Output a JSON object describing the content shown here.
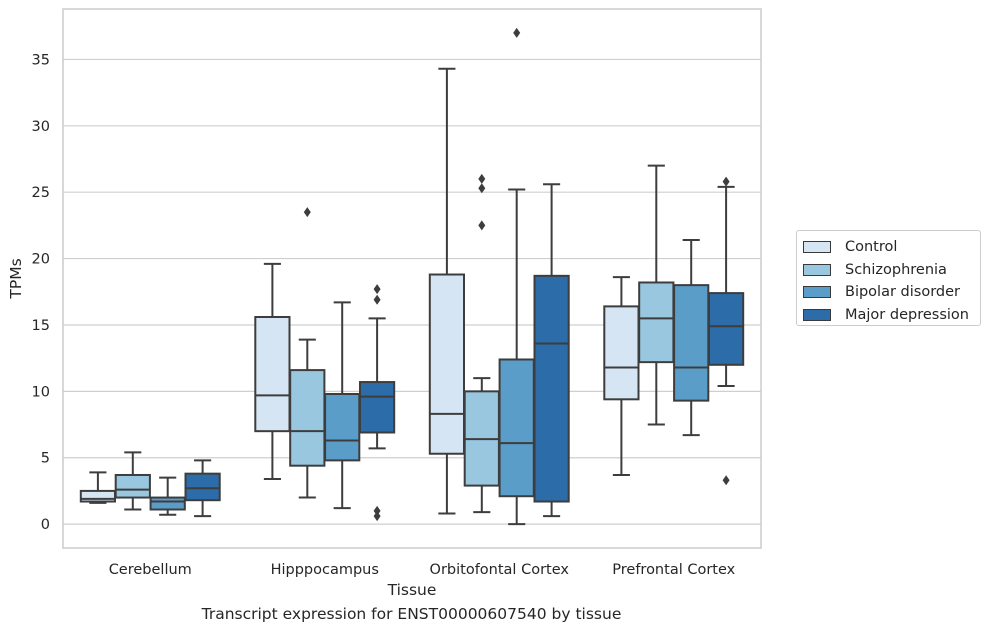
{
  "chart_data": {
    "type": "box",
    "title": "",
    "caption": "Transcript expression for ENST00000607540 by tissue",
    "xlabel": "Tissue",
    "ylabel": "TPMs",
    "ylim": [
      -1.8,
      38.8
    ],
    "yticks": [
      0,
      5,
      10,
      15,
      20,
      25,
      30,
      35
    ],
    "grid": true,
    "legend_position": "outside-right",
    "categories": [
      "Cerebellum",
      "Hipppocampus",
      "Orbitofontal Cortex",
      "Prefrontal Cortex"
    ],
    "series": [
      {
        "name": "Control",
        "color": "#d6e5f4",
        "boxes": [
          {
            "whislo": 1.6,
            "q1": 1.7,
            "med": 1.9,
            "q3": 2.5,
            "whishi": 3.9,
            "fliers": []
          },
          {
            "whislo": 3.4,
            "q1": 7.0,
            "med": 9.7,
            "q3": 15.6,
            "whishi": 19.6,
            "fliers": []
          },
          {
            "whislo": 0.8,
            "q1": 5.3,
            "med": 8.3,
            "q3": 18.8,
            "whishi": 34.3,
            "fliers": []
          },
          {
            "whislo": 3.7,
            "q1": 9.4,
            "med": 11.8,
            "q3": 16.4,
            "whishi": 18.6,
            "fliers": []
          }
        ]
      },
      {
        "name": "Schizophrenia",
        "color": "#9ac7e0",
        "boxes": [
          {
            "whislo": 1.1,
            "q1": 2.0,
            "med": 2.6,
            "q3": 3.7,
            "whishi": 5.4,
            "fliers": []
          },
          {
            "whislo": 2.0,
            "q1": 4.4,
            "med": 7.0,
            "q3": 11.6,
            "whishi": 13.9,
            "fliers": [
              23.5
            ]
          },
          {
            "whislo": 0.9,
            "q1": 2.9,
            "med": 6.4,
            "q3": 10.0,
            "whishi": 11.0,
            "fliers": [
              22.5,
              25.3,
              26.0
            ]
          },
          {
            "whislo": 7.5,
            "q1": 12.2,
            "med": 15.5,
            "q3": 18.2,
            "whishi": 27.0,
            "fliers": []
          }
        ]
      },
      {
        "name": "Bipolar disorder",
        "color": "#5a9dc9",
        "boxes": [
          {
            "whislo": 0.7,
            "q1": 1.1,
            "med": 1.7,
            "q3": 2.0,
            "whishi": 3.5,
            "fliers": []
          },
          {
            "whislo": 1.2,
            "q1": 4.8,
            "med": 6.3,
            "q3": 9.8,
            "whishi": 16.7,
            "fliers": []
          },
          {
            "whislo": 0.0,
            "q1": 2.1,
            "med": 6.1,
            "q3": 12.4,
            "whishi": 25.2,
            "fliers": [
              37.0
            ]
          },
          {
            "whislo": 6.7,
            "q1": 9.3,
            "med": 11.8,
            "q3": 18.0,
            "whishi": 21.4,
            "fliers": []
          }
        ]
      },
      {
        "name": "Major depression",
        "color": "#2b6ca9",
        "boxes": [
          {
            "whislo": 0.6,
            "q1": 1.8,
            "med": 2.7,
            "q3": 3.8,
            "whishi": 4.8,
            "fliers": []
          },
          {
            "whislo": 5.7,
            "q1": 6.9,
            "med": 9.6,
            "q3": 10.7,
            "whishi": 15.5,
            "fliers": [
              0.6,
              1.0,
              16.9,
              17.7
            ]
          },
          {
            "whislo": 0.6,
            "q1": 1.7,
            "med": 13.6,
            "q3": 18.7,
            "whishi": 25.6,
            "fliers": []
          },
          {
            "whislo": 10.4,
            "q1": 12.0,
            "med": 14.9,
            "q3": 17.4,
            "whishi": 25.4,
            "fliers": [
              3.3,
              25.8
            ]
          }
        ]
      }
    ]
  },
  "legend": {
    "items": [
      {
        "label": "Control",
        "color": "#d6e5f4"
      },
      {
        "label": "Schizophrenia",
        "color": "#9ac7e0"
      },
      {
        "label": "Bipolar disorder",
        "color": "#5a9dc9"
      },
      {
        "label": "Major depression",
        "color": "#2b6ca9"
      }
    ]
  }
}
